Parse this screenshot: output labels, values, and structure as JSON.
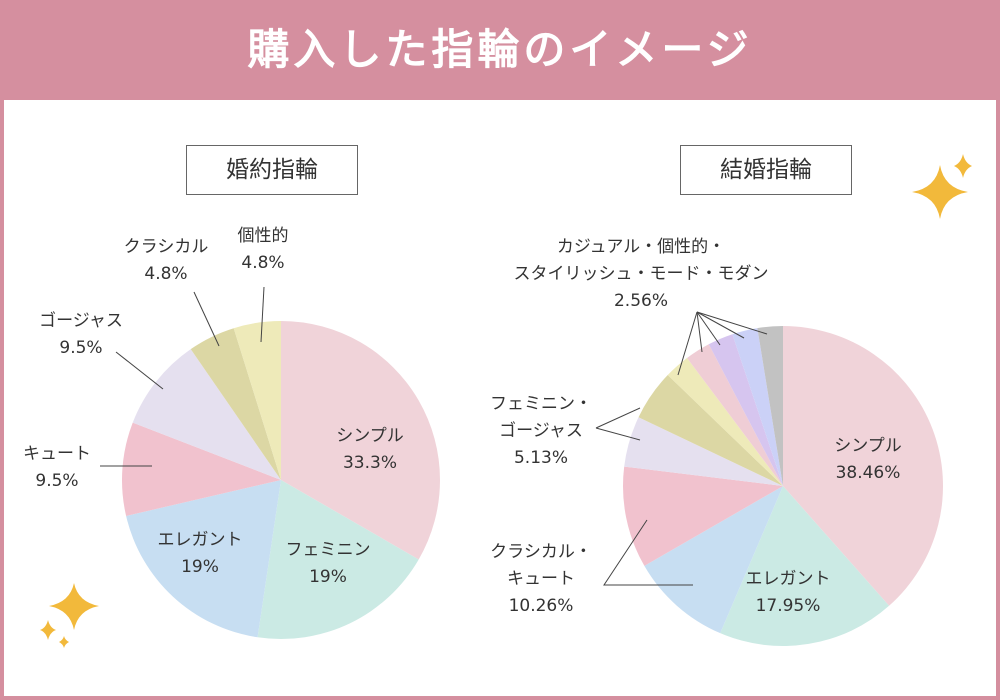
{
  "header": {
    "title": "購入した指輪のイメージ"
  },
  "colors": {
    "banner": "#d58f9f",
    "pink": "#f0d3d9",
    "mint": "#cbeae4",
    "blue": "#c7def2",
    "rose": "#f1c2ce",
    "lavender": "#e5e0ef",
    "olive": "#dcd7a4",
    "cream": "#eeeab9",
    "lightpink": "#efcdd5",
    "purple": "#d6c5ef",
    "periwinkle": "#cbd1f7",
    "gray": "#c2c2c2",
    "sparkle": "#f2b93b"
  },
  "chart_data": [
    {
      "type": "pie",
      "title": "婚約指輪",
      "categories": [
        "シンプル",
        "フェミニン",
        "エレガント",
        "キュート",
        "ゴージャス",
        "クラシカル",
        "個性的"
      ],
      "values": [
        33.3,
        19,
        19,
        9.5,
        9.5,
        4.8,
        4.8
      ],
      "labels": [
        {
          "name": "シンプル",
          "value": "33.3%"
        },
        {
          "name": "フェミニン",
          "value": "19%"
        },
        {
          "name": "エレガント",
          "value": "19%"
        },
        {
          "name": "キュート",
          "value": "9.5%"
        },
        {
          "name": "ゴージャス",
          "value": "9.5%"
        },
        {
          "name": "クラシカル",
          "value": "4.8%"
        },
        {
          "name": "個性的",
          "value": "4.8%"
        }
      ]
    },
    {
      "type": "pie",
      "title": "結婚指輪",
      "categories": [
        "シンプル",
        "エレガント",
        "クラシカル",
        "キュート",
        "フェミニン",
        "ゴージャス",
        "カジュアル",
        "個性的",
        "スタイリッシュ",
        "モード",
        "モダン"
      ],
      "values": [
        38.46,
        17.95,
        10.26,
        10.26,
        5.13,
        5.13,
        2.56,
        2.56,
        2.56,
        2.56,
        2.56
      ],
      "labels": [
        {
          "name": "シンプル",
          "value": "38.46%"
        },
        {
          "name": "エレガント",
          "value": "17.95%"
        },
        {
          "name_lines": [
            "クラシカル・",
            "キュート"
          ],
          "value": "10.26%"
        },
        {
          "name_lines": [
            "フェミニン・",
            "ゴージャス"
          ],
          "value": "5.13%"
        },
        {
          "name_lines": [
            "カジュアル・個性的・",
            "スタイリッシュ・モード・モダン"
          ],
          "value": "2.56%"
        }
      ]
    }
  ]
}
